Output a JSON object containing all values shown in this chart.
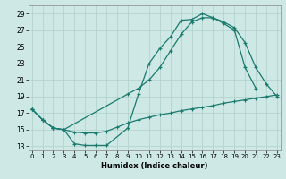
{
  "xlabel": "Humidex (Indice chaleur)",
  "bg_color": "#cde8e5",
  "grid_color": "#b0d0cc",
  "line_color": "#1a7a6e",
  "xlim": [
    0,
    23
  ],
  "ylim": [
    13,
    29.5
  ],
  "xticks": [
    0,
    1,
    2,
    3,
    4,
    5,
    6,
    7,
    8,
    9,
    10,
    11,
    12,
    13,
    14,
    15,
    16,
    17,
    18,
    19,
    20,
    21,
    22,
    23
  ],
  "yticks": [
    13,
    15,
    17,
    19,
    21,
    23,
    25,
    27,
    29
  ],
  "line1_x": [
    0,
    1,
    2,
    3,
    4,
    5,
    6,
    7,
    9,
    10,
    11,
    12,
    13,
    14,
    15,
    16,
    17,
    18,
    19,
    20,
    21
  ],
  "line1_y": [
    17.5,
    16.2,
    15.2,
    15.0,
    13.3,
    13.1,
    13.1,
    13.1,
    15.2,
    19.3,
    23.0,
    24.8,
    26.2,
    28.2,
    28.3,
    29.0,
    28.5,
    27.8,
    27.0,
    22.5,
    20.0
  ],
  "line2_x": [
    0,
    1,
    2,
    3,
    9,
    10,
    11,
    12,
    13,
    14,
    15,
    16,
    17,
    18,
    19,
    20,
    21,
    22,
    23
  ],
  "line2_y": [
    17.5,
    16.2,
    15.2,
    15.0,
    19.3,
    20.0,
    21.0,
    22.5,
    24.5,
    26.5,
    28.0,
    28.5,
    28.5,
    28.0,
    27.3,
    25.5,
    22.5,
    20.5,
    19.0
  ],
  "line3_x": [
    0,
    1,
    2,
    3,
    4,
    5,
    6,
    7,
    8,
    9,
    10,
    11,
    12,
    13,
    14,
    15,
    16,
    17,
    18,
    19,
    20,
    21,
    22,
    23
  ],
  "line3_y": [
    17.5,
    16.2,
    15.2,
    15.0,
    14.7,
    14.6,
    14.6,
    14.8,
    15.3,
    15.8,
    16.2,
    16.5,
    16.8,
    17.0,
    17.3,
    17.5,
    17.7,
    17.9,
    18.2,
    18.4,
    18.6,
    18.8,
    19.0,
    19.2
  ]
}
